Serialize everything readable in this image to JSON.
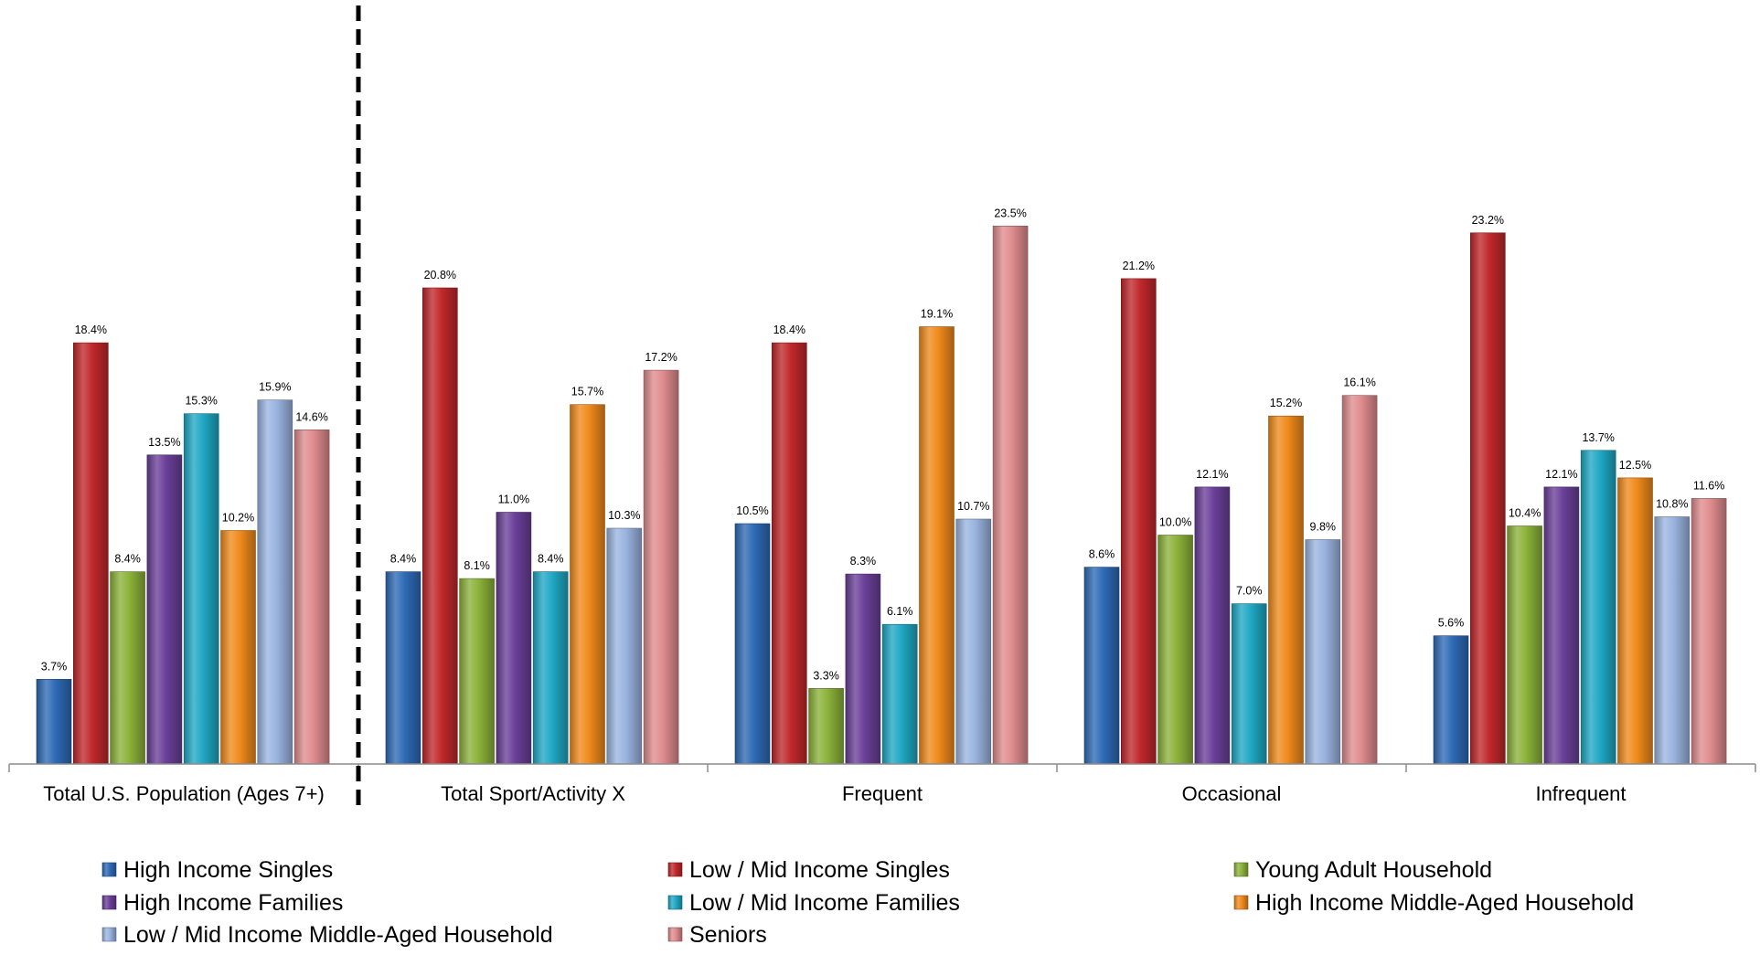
{
  "chart_data": {
    "type": "bar",
    "title": "",
    "xlabel": "",
    "ylabel": "",
    "ylim": [
      0,
      30
    ],
    "grid": false,
    "legend_position": "bottom",
    "value_suffix": "%",
    "categories": [
      "Total U.S. Population (Ages 7+)",
      "Total Sport/Activity X",
      "Frequent",
      "Occasional",
      "Infrequent"
    ],
    "separator_after_category": 0,
    "series": [
      {
        "name": "High Income Singles",
        "color": "#2e6ab5",
        "values": [
          3.7,
          8.4,
          10.5,
          8.6,
          5.6
        ]
      },
      {
        "name": "Low / Mid Income Singles",
        "color": "#c0282b",
        "values": [
          18.4,
          20.8,
          18.4,
          21.2,
          23.2
        ]
      },
      {
        "name": "Young Adult Household",
        "color": "#8cb23a",
        "values": [
          8.4,
          8.1,
          3.3,
          10.0,
          10.4
        ]
      },
      {
        "name": "High Income Families",
        "color": "#6a3f98",
        "values": [
          13.5,
          11.0,
          8.3,
          12.1,
          12.1
        ]
      },
      {
        "name": "Low / Mid Income Families",
        "color": "#1fa8c4",
        "values": [
          15.3,
          8.4,
          6.1,
          7.0,
          13.7
        ]
      },
      {
        "name": "High Income Middle-Aged Household",
        "color": "#f08a1c",
        "values": [
          10.2,
          15.7,
          19.1,
          15.2,
          12.5
        ]
      },
      {
        "name": "Low / Mid Income Middle-Aged Household",
        "color": "#9ab4e0",
        "values": [
          15.9,
          10.3,
          10.7,
          9.8,
          10.8
        ]
      },
      {
        "name": "Seniors",
        "color": "#df8c8e",
        "values": [
          14.6,
          17.2,
          23.5,
          16.1,
          11.6
        ]
      }
    ]
  }
}
